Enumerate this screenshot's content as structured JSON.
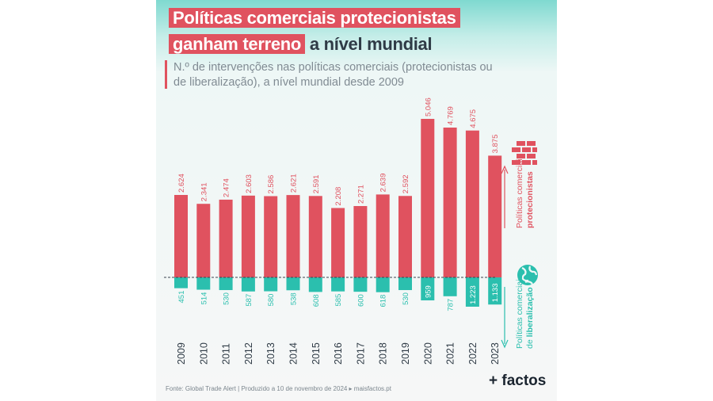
{
  "title": {
    "line1": "Políticas comerciais protecionistas",
    "line2a": "ganham terreno",
    "line2b": "a nível mundial"
  },
  "subtitle": {
    "line1": "N.º de intervenções nas políticas comerciais (protecionistas ou",
    "line2": "de liberalização), a nível mundial desde 2009"
  },
  "chart_data": {
    "type": "bar",
    "title": "Políticas comerciais protecionistas ganham terreno a nível mundial",
    "categories": [
      "2009",
      "2010",
      "2011",
      "2012",
      "2013",
      "2014",
      "2015",
      "2016",
      "2017",
      "2018",
      "2019",
      "2020",
      "2021",
      "2022",
      "2023"
    ],
    "series": [
      {
        "name": "Políticas comerciais protecionistas",
        "values": [
          2624,
          2341,
          2474,
          2603,
          2586,
          2621,
          2591,
          2208,
          2271,
          2639,
          2592,
          5046,
          4769,
          4675,
          3875
        ],
        "labels": [
          "2.624",
          "2.341",
          "2.474",
          "2.603",
          "2.586",
          "2.621",
          "2.591",
          "2.208",
          "2.271",
          "2.639",
          "2.592",
          "5.046",
          "4.769",
          "4.675",
          "3.875"
        ],
        "color": "#e0525f",
        "direction": "up"
      },
      {
        "name": "Políticas comerciais de liberalização",
        "values": [
          451,
          514,
          530,
          587,
          580,
          538,
          608,
          585,
          600,
          618,
          530,
          959,
          787,
          1223,
          1133
        ],
        "labels": [
          "451",
          "514",
          "530",
          "587",
          "580",
          "538",
          "608",
          "585",
          "600",
          "618",
          "530",
          "959",
          "787",
          "1.223",
          "1.133"
        ],
        "color": "#2bbfae",
        "direction": "down"
      }
    ],
    "legend_top": {
      "line1": "Políticas comerciais",
      "line2": "protecionistas"
    },
    "legend_bottom": {
      "line1": "Políticas comerciais",
      "line2a": "de ",
      "line2b": "liberalização"
    }
  },
  "source": "Fonte: Global Trade Alert | Produzido a 10 de novembro de 2024 ▸ maisfactos.pt",
  "brand": "+ factos",
  "icons": {
    "protectionist": "brick-wall-icon",
    "liberalization": "globe-icon"
  }
}
